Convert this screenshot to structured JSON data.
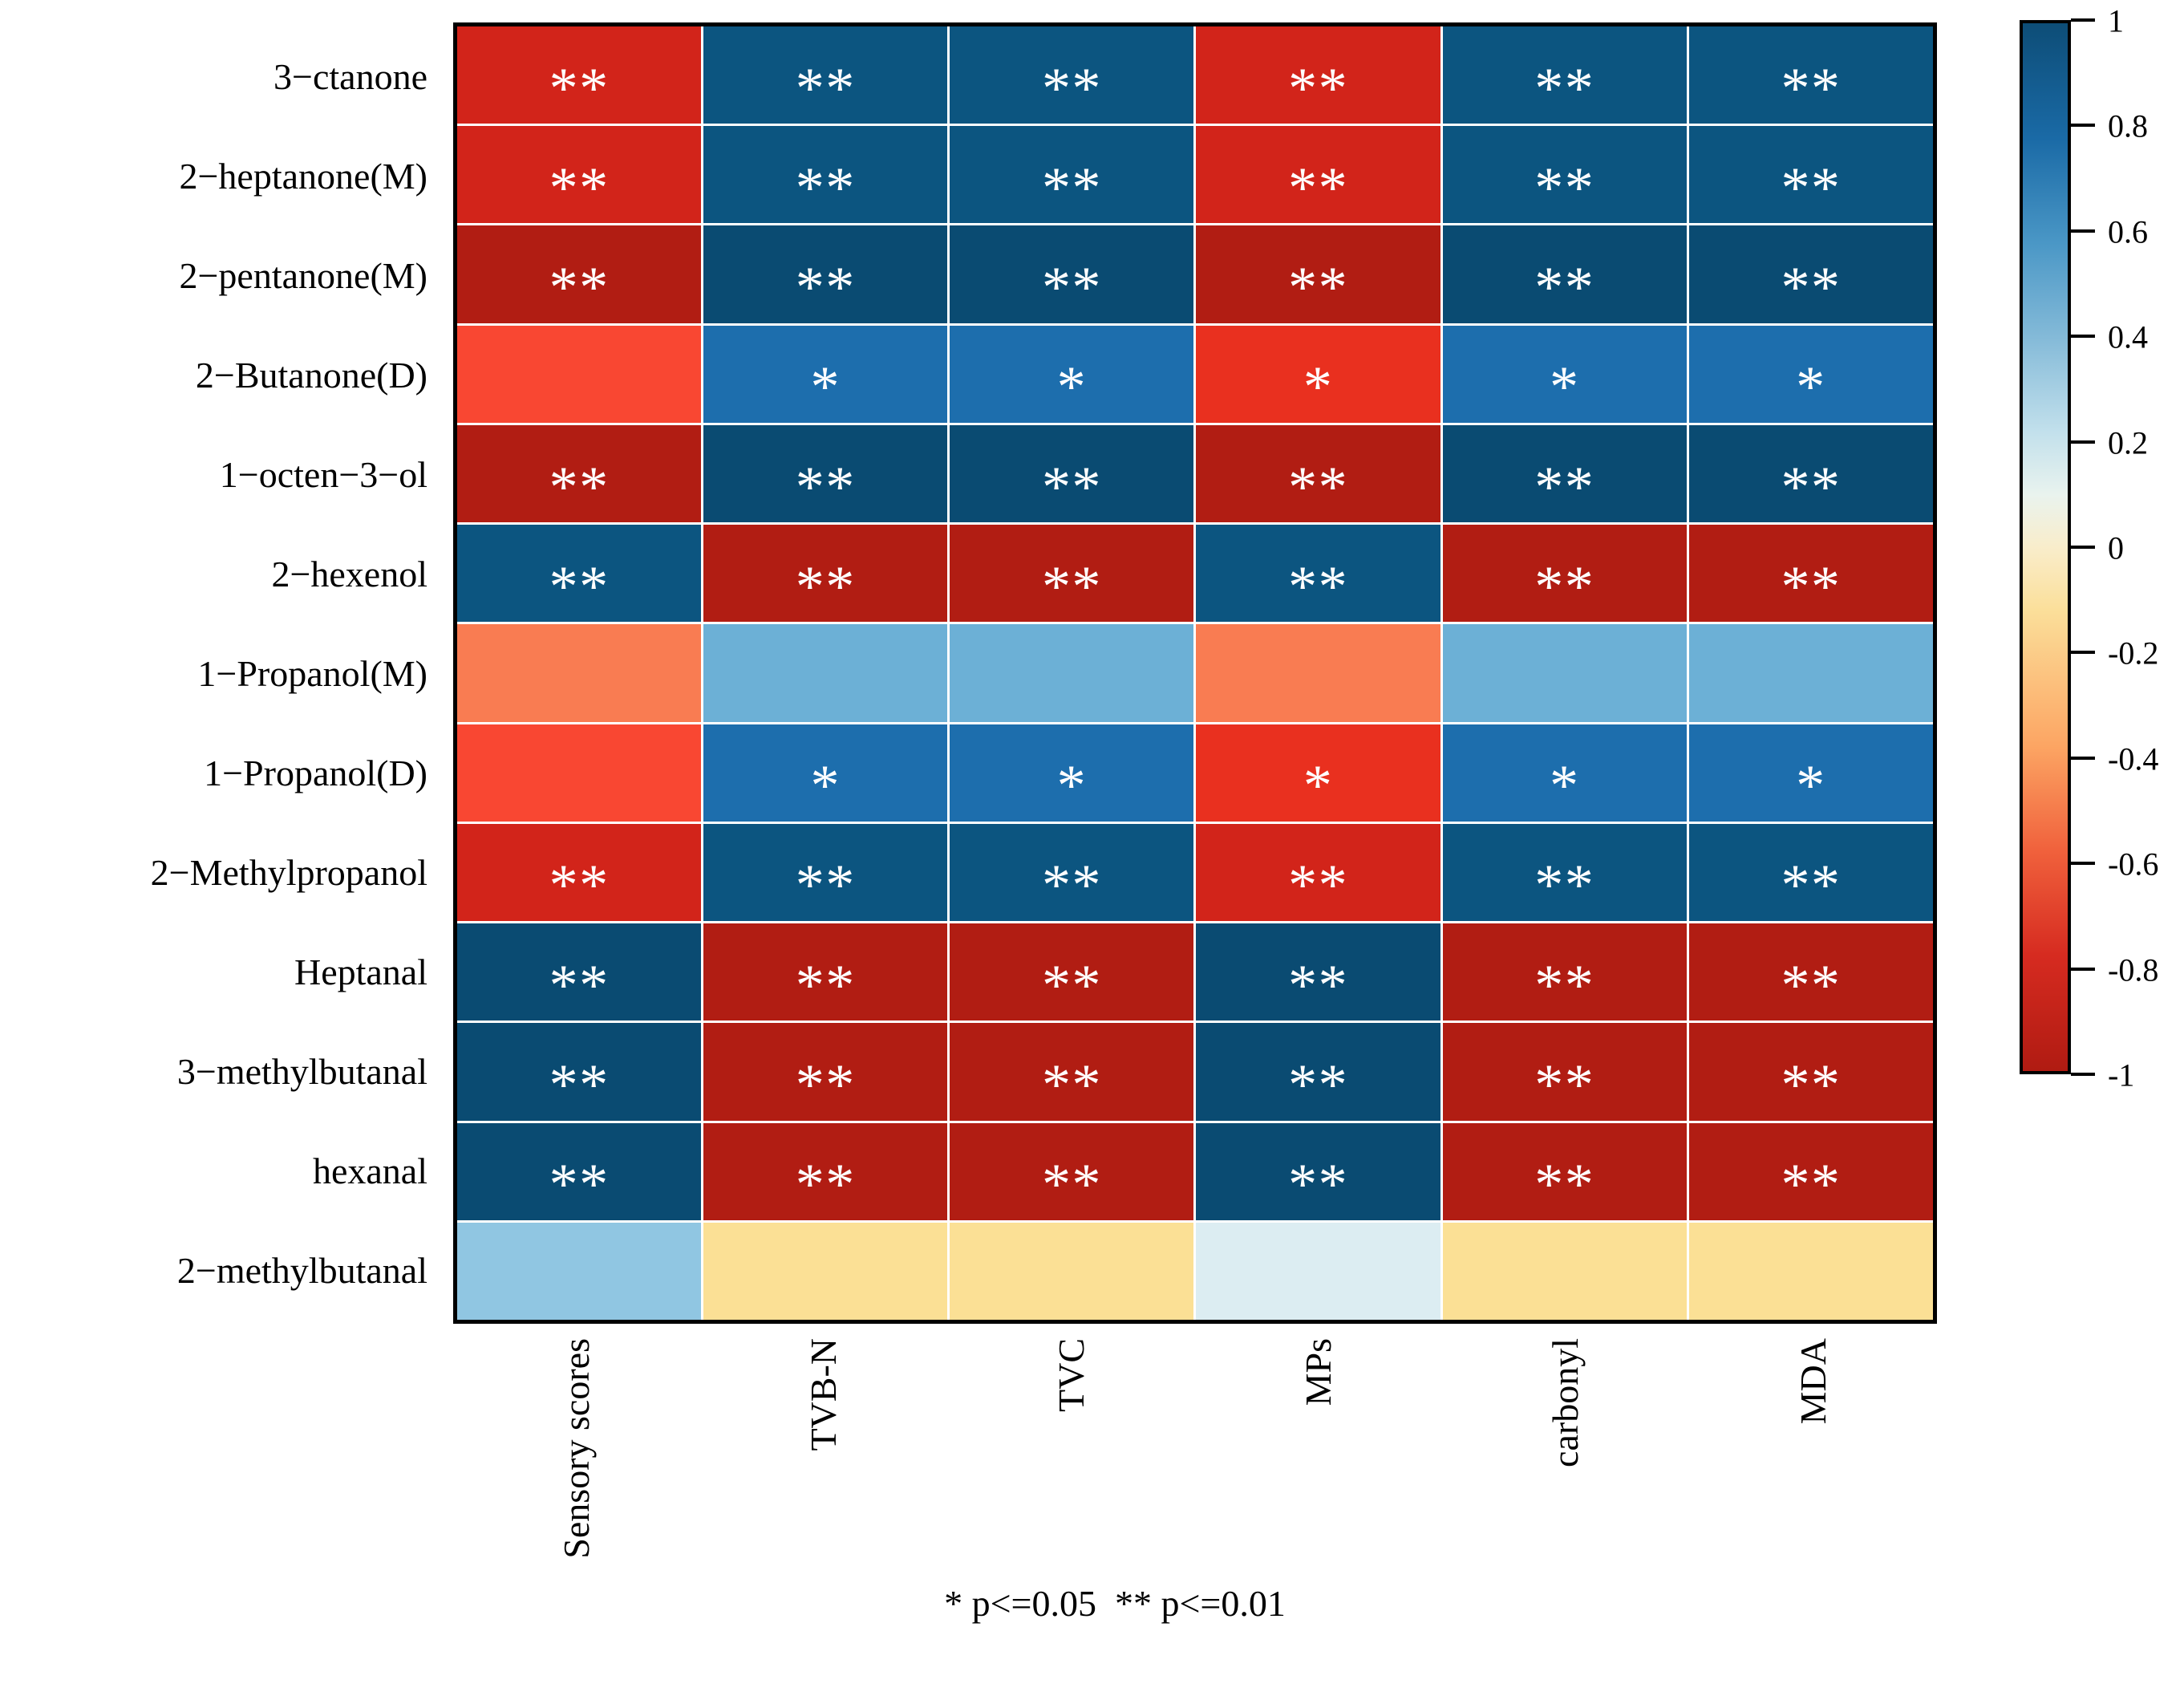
{
  "chart_data": {
    "type": "heatmap",
    "title": "",
    "xlabel": "",
    "ylabel": "",
    "legend_position": "right-colorbar",
    "grid": "white cell separators, black outer frame",
    "rows": [
      "3−ctanone",
      "2−heptanone(M)",
      "2−pentanone(M)",
      "2−Butanone(D)",
      "1−octen−3−ol",
      "2−hexenol",
      "1−Propanol(M)",
      "1−Propanol(D)",
      "2−Methylpropanol",
      "Heptanal",
      "3−methylbutanal",
      "hexanal",
      "2−methylbutanal"
    ],
    "columns": [
      "Sensory scores",
      "TVB-N",
      "TVC",
      "MPs",
      "carbonyl",
      "MDA"
    ],
    "palette": {
      "R": "#d2241a",
      "DR": "#b11d13",
      "BR": "#e9301f",
      "OR": "#f94732",
      "O": "#f97c52",
      "DB1": "#0c5580",
      "DB2": "#0a4b72",
      "MB": "#1d6ead",
      "LB": "#6cb0d6",
      "LB2": "#90c6e2",
      "PB": "#dcedf2",
      "Y": "#fbe095"
    },
    "cell_colors": [
      [
        "R",
        "DB1",
        "DB1",
        "R",
        "DB1",
        "DB1"
      ],
      [
        "R",
        "DB1",
        "DB1",
        "R",
        "DB1",
        "DB1"
      ],
      [
        "DR",
        "DB2",
        "DB2",
        "DR",
        "DB2",
        "DB2"
      ],
      [
        "OR",
        "MB",
        "MB",
        "BR",
        "MB",
        "MB"
      ],
      [
        "DR",
        "DB2",
        "DB2",
        "DR",
        "DB2",
        "DB2"
      ],
      [
        "DB1",
        "DR",
        "DR",
        "DB1",
        "DR",
        "DR"
      ],
      [
        "O",
        "LB",
        "LB",
        "O",
        "LB",
        "LB"
      ],
      [
        "OR",
        "MB",
        "MB",
        "BR",
        "MB",
        "MB"
      ],
      [
        "R",
        "DB1",
        "DB1",
        "R",
        "DB1",
        "DB1"
      ],
      [
        "DB2",
        "DR",
        "DR",
        "DB2",
        "DR",
        "DR"
      ],
      [
        "DB2",
        "DR",
        "DR",
        "DB2",
        "DR",
        "DR"
      ],
      [
        "DB2",
        "DR",
        "DR",
        "DB2",
        "DR",
        "DR"
      ],
      [
        "LB2",
        "Y",
        "Y",
        "PB",
        "Y",
        "Y"
      ]
    ],
    "significance": [
      [
        "**",
        "**",
        "**",
        "**",
        "**",
        "**"
      ],
      [
        "**",
        "**",
        "**",
        "**",
        "**",
        "**"
      ],
      [
        "**",
        "**",
        "**",
        "**",
        "**",
        "**"
      ],
      [
        "",
        "*",
        "*",
        "*",
        "*",
        "*"
      ],
      [
        "**",
        "**",
        "**",
        "**",
        "**",
        "**"
      ],
      [
        "**",
        "**",
        "**",
        "**",
        "**",
        "**"
      ],
      [
        "",
        "",
        "",
        "",
        "",
        ""
      ],
      [
        "",
        "*",
        "*",
        "*",
        "*",
        "*"
      ],
      [
        "**",
        "**",
        "**",
        "**",
        "**",
        "**"
      ],
      [
        "**",
        "**",
        "**",
        "**",
        "**",
        "**"
      ],
      [
        "**",
        "**",
        "**",
        "**",
        "**",
        "**"
      ],
      [
        "**",
        "**",
        "**",
        "**",
        "**",
        "**"
      ],
      [
        "",
        "",
        "",
        "",
        "",
        ""
      ]
    ],
    "values_estimated_from_color": [
      [
        -0.9,
        0.9,
        0.9,
        -0.9,
        0.9,
        0.9
      ],
      [
        -0.9,
        0.9,
        0.9,
        -0.9,
        0.9,
        0.9
      ],
      [
        -0.95,
        0.95,
        0.95,
        -0.95,
        0.95,
        0.95
      ],
      [
        -0.7,
        0.7,
        0.7,
        -0.75,
        0.7,
        0.7
      ],
      [
        -0.95,
        0.95,
        0.95,
        -0.95,
        0.95,
        0.95
      ],
      [
        0.9,
        -0.95,
        -0.95,
        0.9,
        -0.95,
        -0.95
      ],
      [
        -0.35,
        0.45,
        0.45,
        -0.35,
        0.45,
        0.45
      ],
      [
        -0.7,
        0.7,
        0.7,
        -0.75,
        0.7,
        0.7
      ],
      [
        -0.9,
        0.9,
        0.9,
        -0.9,
        0.9,
        0.9
      ],
      [
        0.95,
        -0.95,
        -0.95,
        0.95,
        -0.95,
        -0.95
      ],
      [
        0.95,
        -0.95,
        -0.95,
        0.95,
        -0.95,
        -0.95
      ],
      [
        0.95,
        -0.95,
        -0.95,
        0.95,
        -0.95,
        -0.95
      ],
      [
        0.35,
        -0.15,
        -0.15,
        0.15,
        -0.15,
        -0.15
      ]
    ],
    "colorbar": {
      "min": -1,
      "max": 1,
      "tick_labels": [
        "1",
        "0.8",
        "0.6",
        "0.4",
        "0.2",
        "0",
        "-0.2",
        "-0.4",
        "-0.6",
        "-0.8",
        "-1"
      ],
      "gradient_stops_top_to_bottom": [
        {
          "c": "#0d4d77",
          "p": 0
        },
        {
          "c": "#1a6aa6",
          "p": 11
        },
        {
          "c": "#4a97c6",
          "p": 21
        },
        {
          "c": "#84bad8",
          "p": 30
        },
        {
          "c": "#c2e0ec",
          "p": 39
        },
        {
          "c": "#e9f3ee",
          "p": 45
        },
        {
          "c": "#f9edcb",
          "p": 50
        },
        {
          "c": "#fbdf9a",
          "p": 56
        },
        {
          "c": "#fca563",
          "p": 69
        },
        {
          "c": "#f0613c",
          "p": 79
        },
        {
          "c": "#d62b20",
          "p": 89
        },
        {
          "c": "#b01b12",
          "p": 100
        }
      ]
    },
    "footnote": "* p<=0.05  ** p<=0.01"
  }
}
